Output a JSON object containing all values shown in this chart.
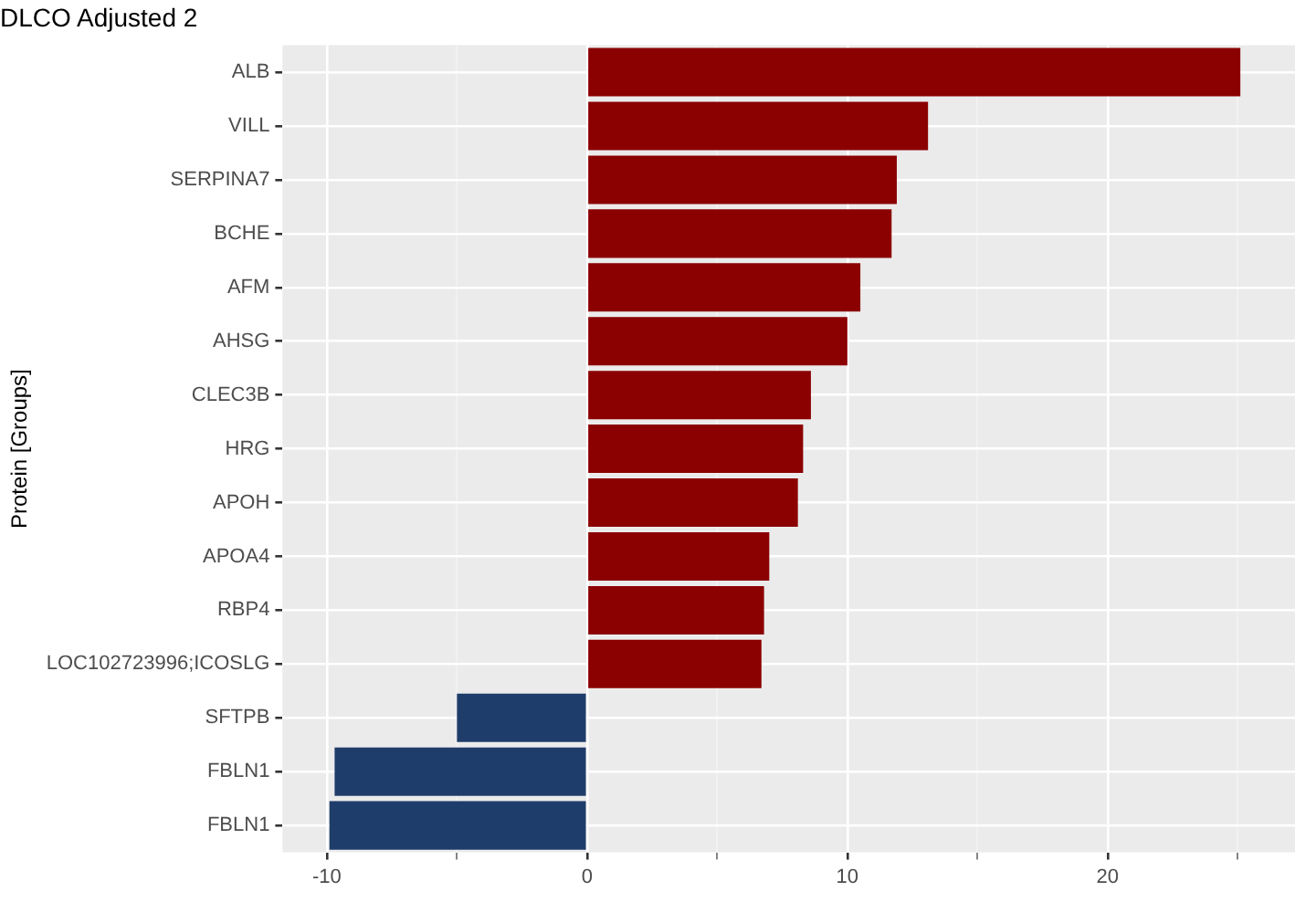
{
  "chart_data": {
    "type": "bar",
    "orientation": "horizontal",
    "title": "DLCO Adjusted 2",
    "ylabel": "Protein [Groups]",
    "categories": [
      "ALB",
      "VILL",
      "SERPINA7",
      "BCHE",
      "AFM",
      "AHSG",
      "CLEC3B",
      "HRG",
      "APOH",
      "APOA4",
      "RBP4",
      "LOC102723996;ICOSLG",
      "SFTPB",
      "FBLN1",
      "FBLN1"
    ],
    "values": [
      25.1,
      13.1,
      11.9,
      11.7,
      10.5,
      10.0,
      8.6,
      8.3,
      8.1,
      7.0,
      6.8,
      6.7,
      -5.0,
      -9.7,
      -9.9
    ],
    "colors": [
      "#8b0000",
      "#8b0000",
      "#8b0000",
      "#8b0000",
      "#8b0000",
      "#8b0000",
      "#8b0000",
      "#8b0000",
      "#8b0000",
      "#8b0000",
      "#8b0000",
      "#8b0000",
      "#1f3d6b",
      "#1f3d6b",
      "#1f3d6b"
    ],
    "xlim": [
      -11.7,
      27.2
    ],
    "xticks": [
      -10,
      {
        "value": -5,
        "label": null
      },
      0,
      {
        "value": 5,
        "label": null
      },
      10,
      {
        "value": 15,
        "label": null
      },
      20,
      {
        "value": 25,
        "label": null
      }
    ],
    "grid": true,
    "legend": false
  }
}
